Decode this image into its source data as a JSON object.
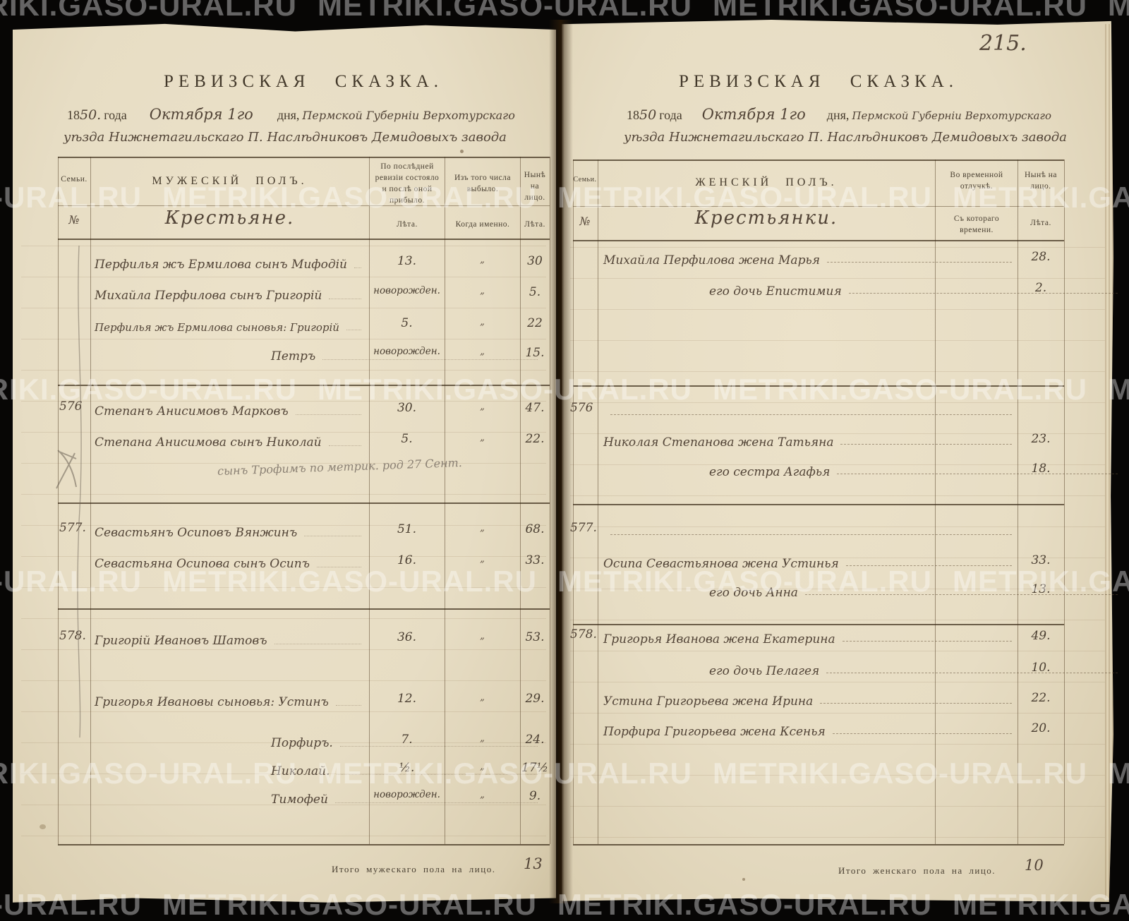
{
  "photo": {
    "page_number": "215.",
    "watermark_text": "METRIKI.GASO-URAL.RU"
  },
  "left_page": {
    "title": "РЕВИЗСКАЯ СКАЗКА.",
    "date": {
      "pre": "18",
      "year_hand": "50.",
      "year_word": "года",
      "month_hand": "Октября 1го",
      "day_word": "дня,",
      "place1": "Пермской Губерніи Верхотурскаго",
      "place2": "уѣзда Нижнетагильскаго П. Наслѣдниковъ Демидовыхъ завода"
    },
    "header": {
      "family": "Семьи.",
      "row_no": "№",
      "sex": "МУЖЕСКІЙ ПОЛЪ.",
      "estate_hand": "Крестьяне.",
      "prev": "По послѣдней ревизіи состояло и послѣ оной прибыло.",
      "prev_sub": "Лѣта.",
      "out": "Изъ того числа выбыло.",
      "out_sub": "Когда именно.",
      "now": "Нынѣ на лицо.",
      "now_sub": "Лѣта."
    },
    "groups": [
      {
        "number": "",
        "rows": [
          {
            "name": "Перфилья жъ Ермилова сынъ Мифодій",
            "prev": "13.",
            "out": "„",
            "now": "30"
          },
          {
            "name": "Михайла Перфилова сынъ Григорій",
            "prev": "новорожден.",
            "out": "„",
            "now": "5."
          },
          {
            "name": "Перфилья жъ Ермилова сыновья: Григорій",
            "prev": "5.",
            "out": "„",
            "now": "22"
          },
          {
            "name": "Петръ",
            "prev": "новорожден.",
            "out": "„",
            "now": "15.",
            "indent": 1
          }
        ]
      },
      {
        "number": "576",
        "rows": [
          {
            "name": "Степанъ Анисимовъ Марковъ",
            "prev": "30.",
            "out": "„",
            "now": "47."
          },
          {
            "name": "Степана Анисимова сынъ Николай",
            "prev": "5.",
            "out": "„",
            "now": "22."
          },
          {
            "pencil": "сынъ Трофимъ по метрик. род 27 Сент."
          }
        ]
      },
      {
        "number": "577.",
        "rows": [
          {
            "name": "Севастьянъ Осиповъ Вянжинъ",
            "prev": "51.",
            "out": "„",
            "now": "68."
          },
          {
            "name": "Севастьяна Осипова сынъ Осипъ",
            "prev": "16.",
            "out": "„",
            "now": "33."
          }
        ]
      },
      {
        "number": "578.",
        "rows": [
          {
            "name": "Григорій Ивановъ Шатовъ",
            "prev": "36.",
            "out": "„",
            "now": "53."
          },
          {
            "name": "Григорья Ивановы сыновья: Устинъ",
            "prev": "12.",
            "out": "„",
            "now": "29."
          },
          {
            "name": "Порфиръ.",
            "prev": "7.",
            "out": "„",
            "now": "24.",
            "indent": 1
          },
          {
            "name": "Николай.",
            "prev": "½.",
            "out": "„",
            "now": "17½",
            "indent": 1
          },
          {
            "name": "Тимофей",
            "prev": "новорожден.",
            "out": "„",
            "now": "9.",
            "indent": 1
          }
        ]
      }
    ],
    "footer": {
      "label": "Итого мужескаго пола на лицо.",
      "value": "13"
    }
  },
  "right_page": {
    "title": "РЕВИЗСКАЯ СКАЗКА.",
    "date": {
      "pre": "18",
      "year_hand": "50",
      "year_word": "года",
      "month_hand": "Октября 1го",
      "day_word": "дня,",
      "place1": "Пермской Губерніи Верхотурскаго",
      "place2": "уѣзда Нижнетагильскаго П. Наслѣдниковъ Демидовыхъ завода"
    },
    "header": {
      "family": "Семьи.",
      "row_no": "№",
      "sex": "ЖЕНСКІЙ ПОЛЪ.",
      "estate_hand": "Крестьянки.",
      "away": "Во временной отлучкѣ.",
      "away_sub": "Съ котораго времени.",
      "now": "Нынѣ на лицо.",
      "now_sub": "Лѣта."
    },
    "groups": [
      {
        "number": "",
        "rows": [
          {
            "name": "Михайла Перфилова жена Марья",
            "age": "28."
          },
          {
            "name": "его дочь Епистимия",
            "age": "2.",
            "indent": 1
          }
        ]
      },
      {
        "number": "576",
        "rows": [
          {
            "dash": true
          },
          {
            "name": "Николая Степанова жена Татьяна",
            "age": "23."
          },
          {
            "name": "его сестра Агафья",
            "age": "18.",
            "indent": 1
          }
        ]
      },
      {
        "number": "577.",
        "rows": [
          {
            "dash": true
          },
          {
            "name": "Осипа Севастьянова жена Устинья",
            "age": "33."
          },
          {
            "name": "его дочь Анна",
            "age": "13.",
            "indent": 1
          }
        ]
      },
      {
        "number": "578.",
        "rows": [
          {
            "name": "Григорья Иванова жена Екатерина",
            "age": "49."
          },
          {
            "name": "его дочь Пелагея",
            "age": "10.",
            "indent": 1
          },
          {
            "name": "Устина Григорьева жена Ирина",
            "age": "22."
          },
          {
            "name": "Порфира Григорьева жена Ксенья",
            "age": "20."
          }
        ]
      }
    ],
    "footer": {
      "label": "Итого женскаго пола на лицо.",
      "value": "10"
    }
  }
}
